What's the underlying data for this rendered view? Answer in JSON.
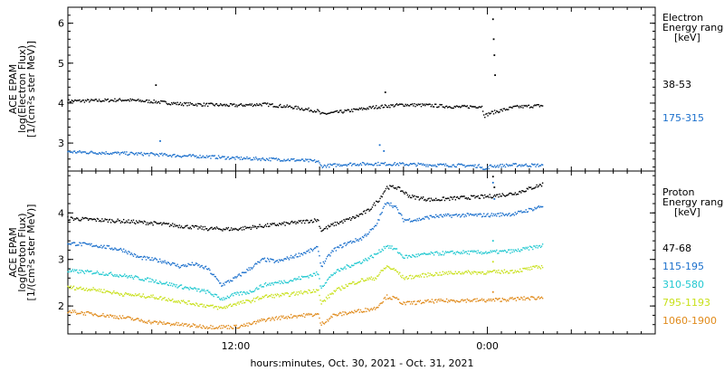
{
  "chart_data": [
    {
      "type": "scatter",
      "panel": "electron",
      "ylabel": [
        "ACE EPAM",
        "log(Electron Flux)",
        "[1/(cm²s ster MeV)]"
      ],
      "ylim": [
        2.3,
        6.4
      ],
      "yticks": [
        3,
        4,
        5,
        6
      ],
      "legend_title": [
        "Electron",
        "Energy range",
        "[keV]"
      ],
      "series": [
        {
          "name": "38-53",
          "color": "#000000",
          "shape": [
            [
              0,
              4.05
            ],
            [
              2,
              4.06
            ],
            [
              4,
              4.08
            ],
            [
              6,
              4.04
            ],
            [
              8,
              3.98
            ],
            [
              10,
              3.96
            ],
            [
              12,
              3.94
            ],
            [
              14,
              3.97
            ],
            [
              16,
              3.9
            ],
            [
              17.9,
              3.8
            ],
            [
              18.1,
              3.72
            ],
            [
              20,
              3.8
            ],
            [
              22,
              3.9
            ],
            [
              24,
              3.96
            ],
            [
              26,
              3.94
            ],
            [
              28,
              3.9
            ],
            [
              29.6,
              3.92
            ],
            [
              29.8,
              3.68
            ],
            [
              30.2,
              3.75
            ],
            [
              32,
              3.9
            ],
            [
              34,
              3.94
            ]
          ],
          "spikes": [
            [
              6.3,
              4.45
            ],
            [
              22.7,
              4.27
            ],
            [
              30.4,
              6.1
            ],
            [
              30.45,
              5.6
            ],
            [
              30.5,
              5.2
            ],
            [
              30.55,
              4.7
            ]
          ]
        },
        {
          "name": "175-315",
          "color": "#1a6fcc",
          "shape": [
            [
              0,
              2.78
            ],
            [
              2,
              2.76
            ],
            [
              4,
              2.74
            ],
            [
              6,
              2.72
            ],
            [
              8,
              2.68
            ],
            [
              10,
              2.66
            ],
            [
              12,
              2.62
            ],
            [
              14,
              2.6
            ],
            [
              16,
              2.58
            ],
            [
              17.9,
              2.54
            ],
            [
              18.1,
              2.42
            ],
            [
              20,
              2.47
            ],
            [
              22,
              2.48
            ],
            [
              24,
              2.47
            ],
            [
              26,
              2.45
            ],
            [
              28,
              2.44
            ],
            [
              29.6,
              2.42
            ],
            [
              29.8,
              2.32
            ],
            [
              30.2,
              2.42
            ],
            [
              32,
              2.45
            ],
            [
              34,
              2.44
            ]
          ],
          "spikes": [
            [
              6.6,
              3.05
            ],
            [
              22.3,
              2.95
            ],
            [
              22.6,
              2.8
            ]
          ]
        }
      ]
    },
    {
      "type": "scatter",
      "panel": "proton",
      "ylabel": [
        "ACE EPAM",
        "log(Proton Flux)",
        "[1/(cm²s ster MeV)]"
      ],
      "ylim": [
        1.4,
        4.9
      ],
      "yticks": [
        2,
        3,
        4
      ],
      "legend_title": [
        "Proton",
        "Energy range",
        "[keV]"
      ],
      "series": [
        {
          "name": "47-68",
          "color": "#000000",
          "shape": [
            [
              0,
              3.88
            ],
            [
              2,
              3.85
            ],
            [
              4,
              3.82
            ],
            [
              6,
              3.78
            ],
            [
              8,
              3.72
            ],
            [
              10,
              3.66
            ],
            [
              12,
              3.65
            ],
            [
              14,
              3.72
            ],
            [
              16,
              3.78
            ],
            [
              17.9,
              3.85
            ],
            [
              18.1,
              3.62
            ],
            [
              19,
              3.75
            ],
            [
              20.5,
              3.9
            ],
            [
              21.5,
              4.05
            ],
            [
              22.3,
              4.3
            ],
            [
              22.8,
              4.55
            ],
            [
              23.5,
              4.55
            ],
            [
              24.5,
              4.35
            ],
            [
              26,
              4.28
            ],
            [
              28,
              4.32
            ],
            [
              30,
              4.35
            ],
            [
              32,
              4.42
            ],
            [
              34,
              4.62
            ]
          ],
          "spikes": [
            [
              30.4,
              4.78
            ],
            [
              30.5,
              4.55
            ]
          ]
        },
        {
          "name": "115-195",
          "color": "#1a6fcc",
          "shape": [
            [
              0,
              3.35
            ],
            [
              2,
              3.3
            ],
            [
              4,
              3.2
            ],
            [
              5,
              3.05
            ],
            [
              6,
              3.0
            ],
            [
              7,
              2.95
            ],
            [
              8,
              2.85
            ],
            [
              9,
              2.9
            ],
            [
              10,
              2.8
            ],
            [
              11,
              2.45
            ],
            [
              12,
              2.6
            ],
            [
              13,
              2.8
            ],
            [
              14,
              3.0
            ],
            [
              15,
              2.95
            ],
            [
              16,
              3.05
            ],
            [
              17,
              3.15
            ],
            [
              17.9,
              3.25
            ],
            [
              18.1,
              2.85
            ],
            [
              19,
              3.2
            ],
            [
              20,
              3.35
            ],
            [
              21,
              3.45
            ],
            [
              22,
              3.7
            ],
            [
              22.8,
              4.25
            ],
            [
              23.5,
              4.1
            ],
            [
              24,
              3.85
            ],
            [
              25,
              3.85
            ],
            [
              26,
              3.92
            ],
            [
              28,
              3.95
            ],
            [
              30,
              3.95
            ],
            [
              32,
              3.98
            ],
            [
              34,
              4.15
            ]
          ],
          "spikes": [
            [
              30.4,
              4.65
            ],
            [
              30.5,
              4.3
            ]
          ]
        },
        {
          "name": "310-580",
          "color": "#20c8d0",
          "shape": [
            [
              0,
              2.75
            ],
            [
              2,
              2.72
            ],
            [
              4,
              2.65
            ],
            [
              6,
              2.55
            ],
            [
              8,
              2.42
            ],
            [
              10,
              2.3
            ],
            [
              11,
              2.15
            ],
            [
              12,
              2.25
            ],
            [
              13,
              2.3
            ],
            [
              14,
              2.45
            ],
            [
              15,
              2.5
            ],
            [
              16,
              2.55
            ],
            [
              17.9,
              2.7
            ],
            [
              18.1,
              2.4
            ],
            [
              19,
              2.7
            ],
            [
              20,
              2.85
            ],
            [
              21,
              2.95
            ],
            [
              22,
              3.1
            ],
            [
              22.8,
              3.3
            ],
            [
              23.5,
              3.2
            ],
            [
              24,
              3.05
            ],
            [
              26,
              3.12
            ],
            [
              28,
              3.15
            ],
            [
              30,
              3.15
            ],
            [
              32,
              3.18
            ],
            [
              34,
              3.3
            ]
          ],
          "spikes": [
            [
              30.4,
              3.4
            ]
          ]
        },
        {
          "name": "795-1193",
          "color": "#c8e01a",
          "shape": [
            [
              0,
              2.4
            ],
            [
              2,
              2.35
            ],
            [
              4,
              2.25
            ],
            [
              6,
              2.2
            ],
            [
              8,
              2.1
            ],
            [
              10,
              2.0
            ],
            [
              11,
              1.95
            ],
            [
              12,
              2.05
            ],
            [
              13,
              2.1
            ],
            [
              14,
              2.2
            ],
            [
              16,
              2.25
            ],
            [
              17.9,
              2.35
            ],
            [
              18.1,
              2.05
            ],
            [
              19,
              2.3
            ],
            [
              20,
              2.45
            ],
            [
              21,
              2.55
            ],
            [
              22,
              2.6
            ],
            [
              22.8,
              2.85
            ],
            [
              23.5,
              2.75
            ],
            [
              24,
              2.6
            ],
            [
              26,
              2.68
            ],
            [
              28,
              2.72
            ],
            [
              30,
              2.72
            ],
            [
              32,
              2.75
            ],
            [
              34,
              2.85
            ]
          ],
          "spikes": [
            [
              30.4,
              2.95
            ]
          ]
        },
        {
          "name": "1060-1900",
          "color": "#e08a1a",
          "shape": [
            [
              0,
              1.88
            ],
            [
              2,
              1.82
            ],
            [
              4,
              1.75
            ],
            [
              6,
              1.65
            ],
            [
              8,
              1.6
            ],
            [
              10,
              1.55
            ],
            [
              12,
              1.55
            ],
            [
              13,
              1.6
            ],
            [
              14,
              1.7
            ],
            [
              16,
              1.78
            ],
            [
              17.9,
              1.82
            ],
            [
              18.1,
              1.6
            ],
            [
              19,
              1.8
            ],
            [
              20,
              1.85
            ],
            [
              21,
              1.9
            ],
            [
              22,
              1.95
            ],
            [
              22.8,
              2.2
            ],
            [
              23.5,
              2.15
            ],
            [
              24,
              2.05
            ],
            [
              26,
              2.1
            ],
            [
              28,
              2.12
            ],
            [
              30,
              2.12
            ],
            [
              32,
              2.15
            ],
            [
              34,
              2.18
            ]
          ],
          "spikes": [
            [
              30.4,
              2.3
            ]
          ]
        }
      ]
    }
  ],
  "x_axis": {
    "xlim": [
      0,
      42
    ],
    "ticks": [
      {
        "value": 12,
        "label": "12:00"
      },
      {
        "value": 30,
        "label": "0:00"
      }
    ],
    "xlabel": "hours:minutes, Oct. 30, 2021 - Oct. 31, 2021"
  }
}
